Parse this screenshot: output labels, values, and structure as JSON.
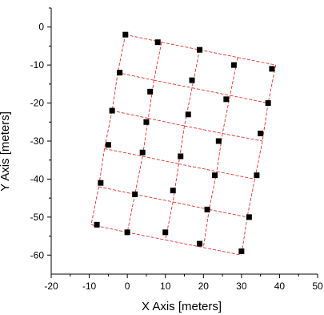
{
  "chart_data": {
    "type": "scatter",
    "title": "",
    "xlabel": "X Axis [meters]",
    "ylabel": "Y Axis [meters]",
    "xlim": [
      -20,
      50
    ],
    "ylim": [
      -65,
      5
    ],
    "xticks": [
      -20,
      -10,
      0,
      10,
      20,
      30,
      40,
      50
    ],
    "yticks": [
      0,
      -10,
      -20,
      -30,
      -40,
      -50,
      -60
    ],
    "grid": false,
    "legend": "none",
    "colors": {
      "points": "#000000",
      "mesh_lines": "#e03030",
      "axes": "#000000"
    },
    "series": [
      {
        "points": [
          {
            "x": -0.5,
            "y": -2
          },
          {
            "x": 8,
            "y": -4
          },
          {
            "x": 19,
            "y": -6
          },
          {
            "x": 28,
            "y": -10
          },
          {
            "x": 38,
            "y": -11
          },
          {
            "x": -2,
            "y": -12
          },
          {
            "x": 6,
            "y": -17
          },
          {
            "x": 17,
            "y": -14
          },
          {
            "x": 26,
            "y": -19
          },
          {
            "x": 37,
            "y": -20
          },
          {
            "x": -4,
            "y": -22
          },
          {
            "x": 5,
            "y": -25
          },
          {
            "x": 16,
            "y": -23
          },
          {
            "x": 24,
            "y": -30
          },
          {
            "x": 35,
            "y": -28
          },
          {
            "x": -5,
            "y": -31
          },
          {
            "x": 4,
            "y": -33
          },
          {
            "x": 14,
            "y": -34
          },
          {
            "x": 23,
            "y": -39
          },
          {
            "x": 34,
            "y": -39
          },
          {
            "x": -7,
            "y": -41
          },
          {
            "x": 2,
            "y": -44
          },
          {
            "x": 12,
            "y": -43
          },
          {
            "x": 21,
            "y": -48
          },
          {
            "x": 32,
            "y": -50
          },
          {
            "x": -8,
            "y": -52
          },
          {
            "x": 0,
            "y": -54
          },
          {
            "x": 10,
            "y": -54
          },
          {
            "x": 19,
            "y": -57
          },
          {
            "x": 30,
            "y": -59
          }
        ]
      }
    ],
    "mesh": {
      "rows": 6,
      "cols": 5,
      "nodes": [
        [
          [
            -0.5,
            -2
          ],
          [
            9,
            -4
          ],
          [
            19,
            -6
          ],
          [
            29,
            -8
          ],
          [
            39,
            -10
          ]
        ],
        [
          [
            -2.5,
            -12
          ],
          [
            7,
            -14
          ],
          [
            17,
            -16
          ],
          [
            27,
            -18
          ],
          [
            37,
            -20
          ]
        ],
        [
          [
            -4,
            -22
          ],
          [
            5.5,
            -24
          ],
          [
            15,
            -26
          ],
          [
            25,
            -28
          ],
          [
            35.5,
            -30
          ]
        ],
        [
          [
            -6,
            -32
          ],
          [
            4,
            -34
          ],
          [
            13.5,
            -36
          ],
          [
            23.5,
            -38
          ],
          [
            33.5,
            -40
          ]
        ],
        [
          [
            -7.5,
            -42
          ],
          [
            2,
            -44
          ],
          [
            12,
            -46
          ],
          [
            21.5,
            -48
          ],
          [
            31.5,
            -50
          ]
        ],
        [
          [
            -9.5,
            -52
          ],
          [
            0,
            -54
          ],
          [
            10,
            -56
          ],
          [
            20,
            -58
          ],
          [
            30,
            -60
          ]
        ]
      ]
    }
  }
}
